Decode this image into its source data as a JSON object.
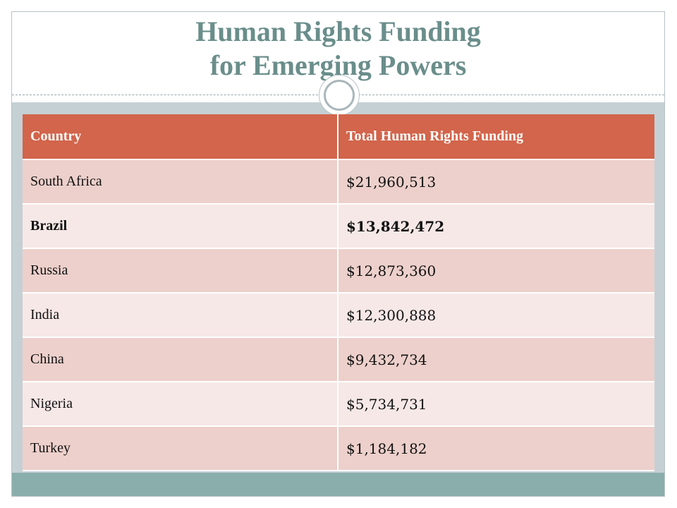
{
  "slide": {
    "title_line1": "Human Rights Funding",
    "title_line2": "for Emerging Powers"
  },
  "table": {
    "headers": [
      "Country",
      "Total Human Rights Funding"
    ],
    "rows": [
      {
        "country": "South Africa",
        "funding": "$21,960,513",
        "bold": false
      },
      {
        "country": "Brazil",
        "funding": "$13,842,472",
        "bold": true
      },
      {
        "country": "Russia",
        "funding": "$12,873,360",
        "bold": false
      },
      {
        "country": "India",
        "funding": "$12,300,888",
        "bold": false
      },
      {
        "country": "China",
        "funding": "$9,432,734",
        "bold": false
      },
      {
        "country": "Nigeria",
        "funding": "$5,734,731",
        "bold": false
      },
      {
        "country": "Turkey",
        "funding": "$1,184,182",
        "bold": false
      }
    ]
  },
  "colors": {
    "title": "#6a8e8b",
    "header_bg": "#d2654b",
    "row_odd": "#edd0cb",
    "row_even": "#f6e8e6",
    "content_band": "#c5d0d4",
    "footer_band": "#8aaeab"
  }
}
